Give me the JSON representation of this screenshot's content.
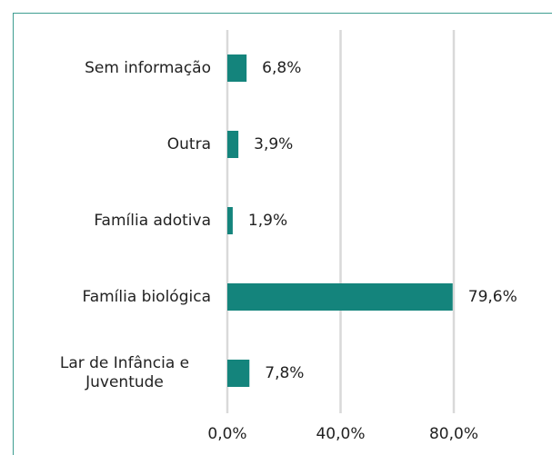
{
  "chart_data": {
    "type": "barh",
    "categories": [
      "Sem informação",
      "Outra",
      "Família adotiva",
      "Família biológica",
      "Lar de Infância e Juventude"
    ],
    "values": [
      6.8,
      3.9,
      1.9,
      79.6,
      7.8
    ],
    "value_labels": [
      "6,8%",
      "3,9%",
      "1,9%",
      "79,6%",
      "7,8%"
    ],
    "color": "#14847c",
    "xlim": [
      0,
      80
    ],
    "xticks": [
      {
        "value": 0,
        "label": "0,0%"
      },
      {
        "value": 40,
        "label": "40,0%"
      },
      {
        "value": 80,
        "label": "80,0%"
      }
    ],
    "grid": true
  }
}
